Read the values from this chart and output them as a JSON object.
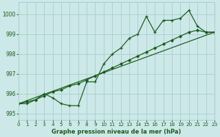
{
  "title": "Graphe pression niveau de la mer (hPa)",
  "bg_color": "#cce8e8",
  "grid_color": "#aacccc",
  "line_color": "#1a5c1a",
  "xlim": [
    0,
    23
  ],
  "ylim": [
    994.7,
    1000.6
  ],
  "yticks": [
    995,
    996,
    997,
    998,
    999,
    1000
  ],
  "xticks": [
    0,
    1,
    2,
    3,
    4,
    5,
    6,
    7,
    8,
    9,
    10,
    11,
    12,
    13,
    14,
    15,
    16,
    17,
    18,
    19,
    20,
    21,
    22,
    23
  ],
  "series_main_x": [
    0,
    1,
    2,
    3,
    4,
    5,
    6,
    7,
    8,
    9,
    10,
    11,
    12,
    13,
    14,
    15,
    16,
    17,
    18,
    19,
    20,
    21,
    22,
    23
  ],
  "series_main_y": [
    995.5,
    995.5,
    995.7,
    996.0,
    995.8,
    995.5,
    995.4,
    995.4,
    996.6,
    996.6,
    997.5,
    998.0,
    998.3,
    998.8,
    999.0,
    999.9,
    999.1,
    999.7,
    999.7,
    999.8,
    1000.2,
    999.4,
    999.1,
    999.1
  ],
  "series_trend_x": [
    0,
    23
  ],
  "series_trend_y": [
    995.5,
    999.1
  ],
  "series_smooth_x": [
    0,
    1,
    2,
    3,
    4,
    5,
    6,
    7,
    8,
    9,
    10,
    11,
    12,
    13,
    14,
    15,
    16,
    17,
    18,
    19,
    20,
    21,
    22,
    23
  ],
  "series_smooth_y": [
    995.5,
    995.6,
    995.7,
    995.9,
    996.1,
    996.2,
    996.4,
    996.5,
    996.7,
    996.9,
    997.1,
    997.3,
    997.5,
    997.7,
    997.9,
    998.1,
    998.3,
    998.5,
    998.7,
    998.9,
    999.1,
    999.2,
    999.1,
    999.1
  ]
}
